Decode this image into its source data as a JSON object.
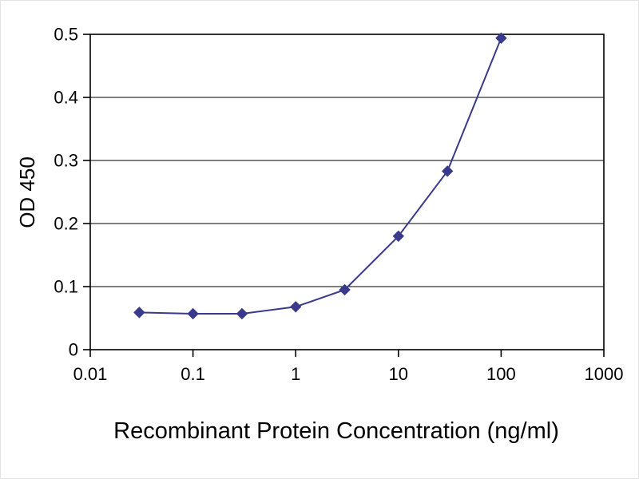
{
  "chart_data": {
    "type": "line",
    "x": [
      0.03,
      0.1,
      0.3,
      1,
      3,
      10,
      30,
      100
    ],
    "y": [
      0.059,
      0.057,
      0.057,
      0.068,
      0.095,
      0.18,
      0.283,
      0.494
    ],
    "title": "",
    "xlabel": "Recombinant Protein Concentration (ng/ml)",
    "ylabel": "OD 450",
    "x_scale": "log",
    "xlim": [
      0.01,
      1000
    ],
    "ylim": [
      0,
      0.5
    ],
    "x_tick_labels": [
      "0.01",
      "0.1",
      "1",
      "10",
      "100",
      "1000"
    ],
    "y_tick_labels": [
      "0",
      "0.1",
      "0.2",
      "0.3",
      "0.4",
      "0.5"
    ],
    "line_color": "#3A3A8C",
    "marker": "diamond",
    "grid": "horizontal",
    "legend": "none"
  }
}
